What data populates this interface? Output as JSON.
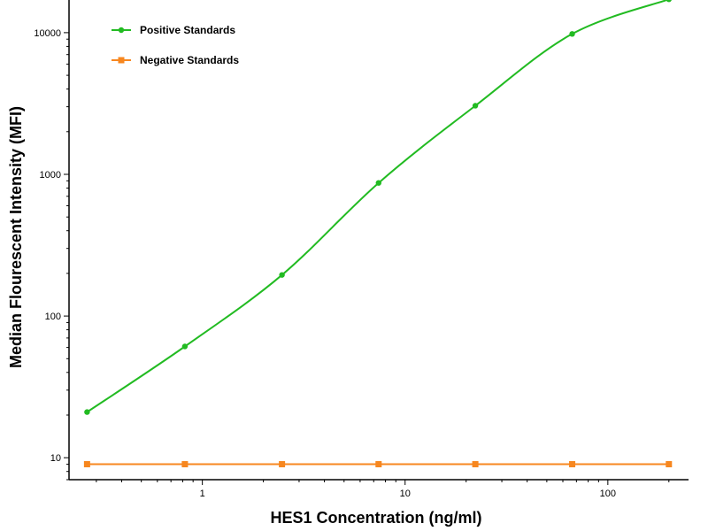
{
  "chart_data": {
    "type": "line",
    "xlabel": "HES1 Concentration (ng/ml)",
    "ylabel": "Median Flourescent Intensity (MFI)",
    "x_scale": "log",
    "y_scale": "log",
    "xlim": [
      0.22,
      250
    ],
    "ylim": [
      7,
      17000
    ],
    "x_ticks": [
      1,
      10,
      100
    ],
    "x_tick_labels": [
      "1",
      "10",
      "100"
    ],
    "y_ticks": [
      10,
      100,
      1000,
      10000
    ],
    "y_tick_labels": [
      "10",
      "100",
      "1000",
      "10000"
    ],
    "legend_position": "top-left",
    "grid": false,
    "series": [
      {
        "name": "Positive Standards",
        "color": "#22bb22",
        "marker": "circle",
        "x": [
          0.27,
          0.82,
          2.47,
          7.4,
          22.2,
          66.7,
          200
        ],
        "y": [
          21,
          61,
          195,
          870,
          3050,
          9800,
          17200
        ]
      },
      {
        "name": "Negative Standards",
        "color": "#f7871f",
        "marker": "square",
        "x": [
          0.27,
          0.82,
          2.47,
          7.4,
          22.2,
          66.7,
          200
        ],
        "y": [
          9,
          9,
          9,
          9,
          9,
          9,
          9
        ]
      }
    ]
  }
}
